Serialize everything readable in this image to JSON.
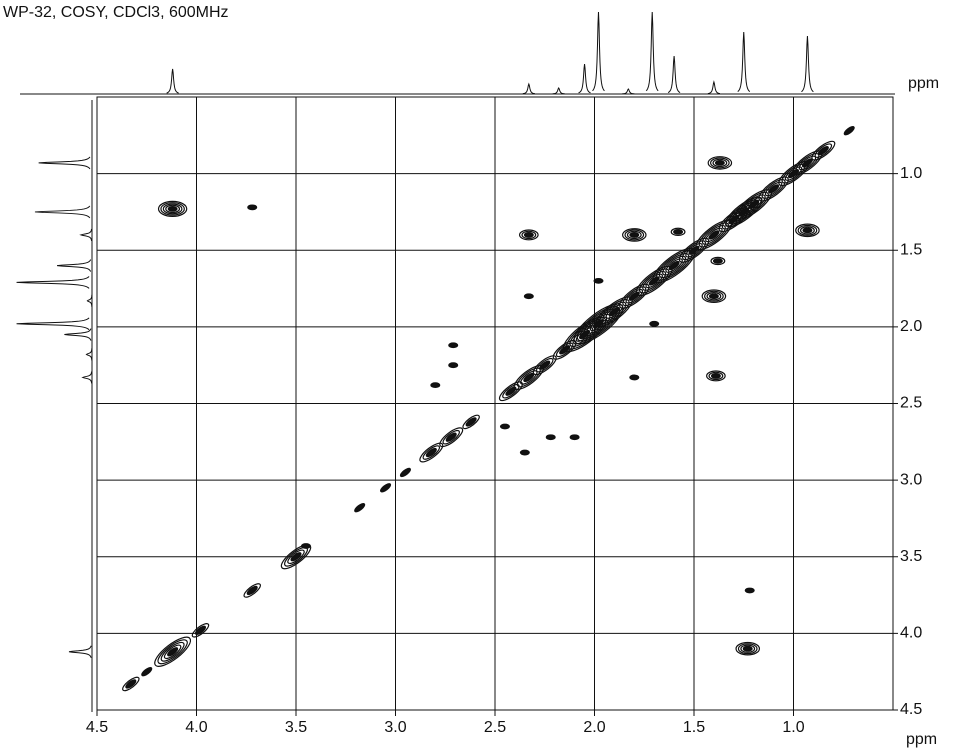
{
  "chart_data": {
    "type": "cosy",
    "title": "WP-32, COSY, CDCl3, 600MHz",
    "x_label": "ppm",
    "y_label": "ppm",
    "xlim": [
      4.5,
      0.5
    ],
    "ylim": [
      0.5,
      4.5
    ],
    "xticks": [
      4.5,
      {
        "value": 4,
        "label": "4.0"
      },
      3.5,
      {
        "value": 3,
        "label": "3.0"
      },
      2.5,
      {
        "value": 2,
        "label": "2.0"
      },
      1.5,
      {
        "value": 1,
        "label": "1.0"
      }
    ],
    "yticks": [
      {
        "value": 1,
        "label": "1.0"
      },
      1.5,
      {
        "value": 2,
        "label": "2.0"
      },
      2.5,
      {
        "value": 3,
        "label": "3.0"
      },
      3.5,
      {
        "value": 4,
        "label": "4.0"
      },
      4.5
    ],
    "grid": true,
    "color": "#111111",
    "projection_peaks": [
      {
        "ppm": 4.12,
        "height": 25
      },
      {
        "ppm": 2.33,
        "height": 10
      },
      {
        "ppm": 2.18,
        "height": 6
      },
      {
        "ppm": 2.05,
        "height": 30
      },
      {
        "ppm": 1.98,
        "height": 82
      },
      {
        "ppm": 1.83,
        "height": 5
      },
      {
        "ppm": 1.71,
        "height": 82
      },
      {
        "ppm": 1.6,
        "height": 38
      },
      {
        "ppm": 1.4,
        "height": 12
      },
      {
        "ppm": 1.25,
        "height": 62
      },
      {
        "ppm": 0.93,
        "height": 58
      }
    ],
    "diagonal_peaks": [
      {
        "ppm": 0.72,
        "intensity": 1
      },
      {
        "ppm": 0.85,
        "intensity": 3
      },
      {
        "ppm": 0.93,
        "intensity": 4
      },
      {
        "ppm": 1.0,
        "intensity": 4
      },
      {
        "ppm": 1.1,
        "intensity": 4
      },
      {
        "ppm": 1.2,
        "intensity": 5
      },
      {
        "ppm": 1.25,
        "intensity": 5
      },
      {
        "ppm": 1.3,
        "intensity": 4
      },
      {
        "ppm": 1.4,
        "intensity": 5
      },
      {
        "ppm": 1.5,
        "intensity": 4
      },
      {
        "ppm": 1.6,
        "intensity": 6
      },
      {
        "ppm": 1.7,
        "intensity": 5
      },
      {
        "ppm": 1.8,
        "intensity": 4
      },
      {
        "ppm": 1.9,
        "intensity": 5
      },
      {
        "ppm": 1.98,
        "intensity": 7
      },
      {
        "ppm": 2.05,
        "intensity": 6
      },
      {
        "ppm": 2.15,
        "intensity": 3
      },
      {
        "ppm": 2.25,
        "intensity": 3
      },
      {
        "ppm": 2.33,
        "intensity": 4
      },
      {
        "ppm": 2.42,
        "intensity": 3
      },
      {
        "ppm": 2.62,
        "intensity": 2
      },
      {
        "ppm": 2.72,
        "intensity": 3
      },
      {
        "ppm": 2.82,
        "intensity": 3
      },
      {
        "ppm": 2.95,
        "intensity": 1
      },
      {
        "ppm": 3.05,
        "intensity": 1
      },
      {
        "ppm": 3.18,
        "intensity": 1
      },
      {
        "ppm": 3.5,
        "intensity": 4
      },
      {
        "ppm": 3.72,
        "intensity": 2
      },
      {
        "ppm": 3.98,
        "intensity": 2
      },
      {
        "ppm": 4.12,
        "intensity": 5
      },
      {
        "ppm": 4.25,
        "intensity": 1
      },
      {
        "ppm": 4.33,
        "intensity": 2
      }
    ],
    "cross_peaks": [
      {
        "x": 1.37,
        "y": 0.93,
        "intensity": 4
      },
      {
        "x": 0.93,
        "y": 1.37,
        "intensity": 4
      },
      {
        "x": 4.12,
        "y": 1.23,
        "intensity": 5
      },
      {
        "x": 1.23,
        "y": 4.1,
        "intensity": 4
      },
      {
        "x": 3.72,
        "y": 1.22,
        "intensity": 1
      },
      {
        "x": 2.33,
        "y": 1.4,
        "intensity": 3
      },
      {
        "x": 1.8,
        "y": 1.4,
        "intensity": 4
      },
      {
        "x": 1.58,
        "y": 1.38,
        "intensity": 2
      },
      {
        "x": 1.4,
        "y": 1.8,
        "intensity": 4
      },
      {
        "x": 1.39,
        "y": 2.32,
        "intensity": 3
      },
      {
        "x": 2.33,
        "y": 1.8,
        "intensity": 1
      },
      {
        "x": 1.8,
        "y": 2.33,
        "intensity": 1
      },
      {
        "x": 1.7,
        "y": 1.98,
        "intensity": 1
      },
      {
        "x": 1.98,
        "y": 1.7,
        "intensity": 1
      },
      {
        "x": 2.71,
        "y": 2.12,
        "intensity": 1
      },
      {
        "x": 2.71,
        "y": 2.25,
        "intensity": 1
      },
      {
        "x": 2.8,
        "y": 2.38,
        "intensity": 1
      },
      {
        "x": 2.45,
        "y": 2.65,
        "intensity": 1
      },
      {
        "x": 2.35,
        "y": 2.82,
        "intensity": 1
      },
      {
        "x": 2.22,
        "y": 2.72,
        "intensity": 1
      },
      {
        "x": 2.1,
        "y": 2.72,
        "intensity": 1
      },
      {
        "x": 1.22,
        "y": 3.72,
        "intensity": 1
      },
      {
        "x": 1.38,
        "y": 1.57,
        "intensity": 2
      },
      {
        "x": 3.45,
        "y": 3.43,
        "intensity": 1
      }
    ]
  }
}
